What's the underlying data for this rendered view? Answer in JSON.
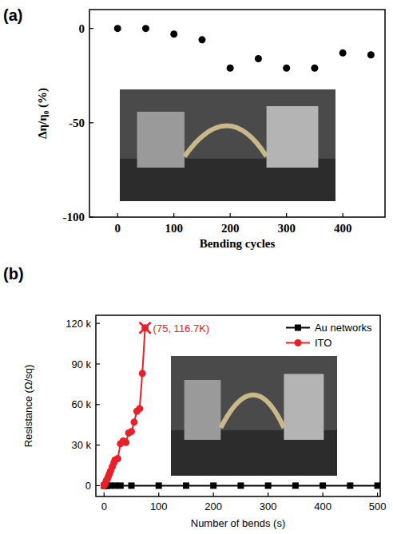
{
  "chart_data": [
    {
      "type": "scatter",
      "label": "(a)",
      "x_label": "Bending cycles",
      "y_label": "Δη/η₀ (%)",
      "x": [
        0,
        50,
        100,
        150,
        200,
        250,
        300,
        350,
        400,
        450
      ],
      "values": [
        0,
        0,
        -3,
        -6,
        -21,
        -16,
        -21,
        -21,
        -13,
        -14
      ],
      "color": "#000000",
      "marker": "circle",
      "xlim": [
        -50,
        475
      ],
      "xticks": [
        0,
        100,
        200,
        300,
        400
      ],
      "ylim": [
        -100,
        10
      ],
      "yticks": [
        -100,
        -50,
        0
      ],
      "grid": false
    },
    {
      "type": "line",
      "label": "(b)",
      "x_label": "Number of bends (s)",
      "y_label": "Resistance (Ω/sq)",
      "series": [
        {
          "name": "Au networks",
          "color": "#000000",
          "marker": "square",
          "x": [
            0,
            2,
            5,
            10,
            20,
            30,
            50,
            100,
            150,
            200,
            250,
            300,
            350,
            400,
            450,
            500
          ],
          "values": [
            20,
            20,
            20,
            20,
            20,
            20,
            20,
            20,
            20,
            20,
            20,
            20,
            20,
            20,
            20,
            20
          ]
        },
        {
          "name": "ITO",
          "color": "#e8202a",
          "marker": "circle",
          "x": [
            0,
            2,
            4,
            6,
            8,
            10,
            12,
            15,
            18,
            20,
            25,
            30,
            35,
            40,
            45,
            50,
            55,
            60,
            65,
            70,
            75
          ],
          "values": [
            0,
            1500,
            3500,
            5000,
            7000,
            9000,
            11000,
            14000,
            17000,
            19000,
            20000,
            31000,
            33000,
            32000,
            39000,
            40000,
            47000,
            55000,
            57000,
            83000,
            116700
          ]
        }
      ],
      "annotations": [
        {
          "text": "(75, 116.7K)",
          "x": 75,
          "y": 116700,
          "marker": "x",
          "color": "#e8202a"
        }
      ],
      "xlim": [
        -15,
        505
      ],
      "xticks": [
        0,
        100,
        200,
        300,
        400,
        500
      ],
      "ylim": [
        -8000,
        126000
      ],
      "yticks": [
        0,
        {
          "value": 30000,
          "label": "30 k"
        },
        {
          "value": 60000,
          "label": "60 k"
        },
        {
          "value": 90000,
          "label": "90 k"
        },
        {
          "value": 120000,
          "label": "120 k"
        }
      ],
      "legend": "upper right",
      "grid": false
    }
  ]
}
